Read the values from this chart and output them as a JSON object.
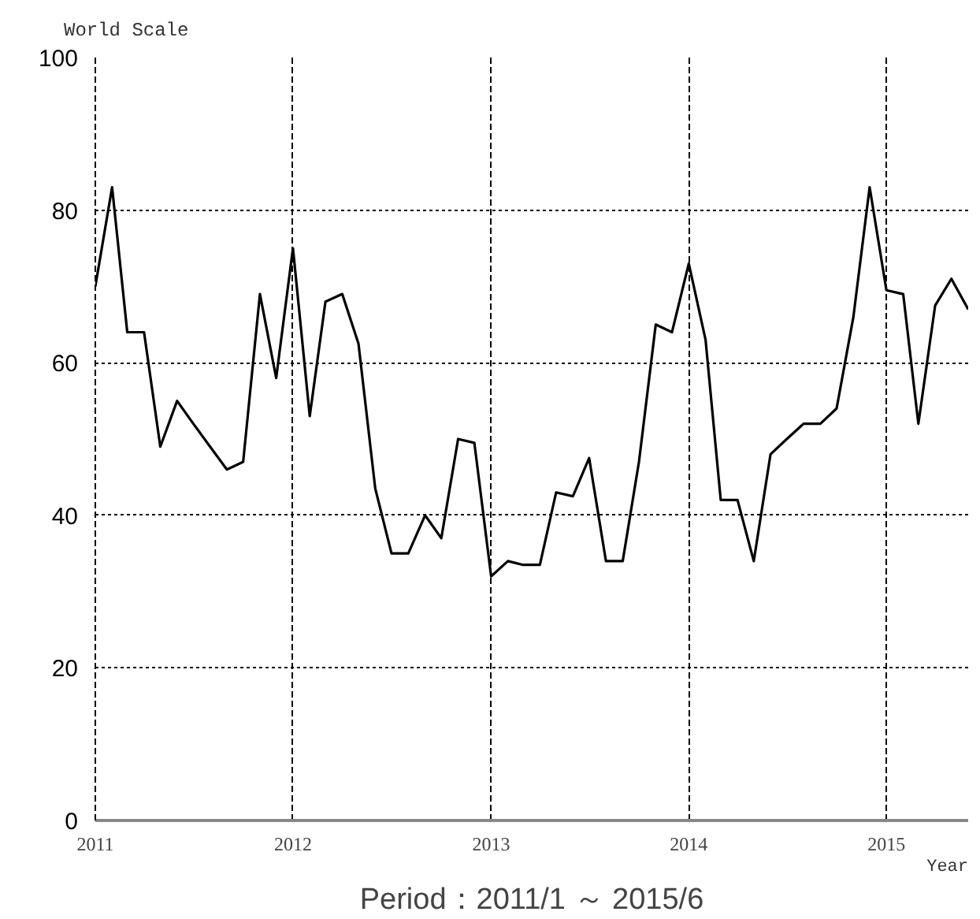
{
  "chart_data": {
    "type": "line",
    "title": "Period：2011/1 ～ 2015/6",
    "xlabel": "Year",
    "ylabel": "World Scale",
    "x": [
      "2011-01",
      "2011-02",
      "2011-03",
      "2011-04",
      "2011-05",
      "2011-06",
      "2011-07",
      "2011-08",
      "2011-09",
      "2011-10",
      "2011-11",
      "2011-12",
      "2012-01",
      "2012-02",
      "2012-03",
      "2012-04",
      "2012-05",
      "2012-06",
      "2012-07",
      "2012-08",
      "2012-09",
      "2012-10",
      "2012-11",
      "2012-12",
      "2013-01",
      "2013-02",
      "2013-03",
      "2013-04",
      "2013-05",
      "2013-06",
      "2013-07",
      "2013-08",
      "2013-09",
      "2013-10",
      "2013-11",
      "2013-12",
      "2014-01",
      "2014-02",
      "2014-03",
      "2014-04",
      "2014-05",
      "2014-06",
      "2014-07",
      "2014-08",
      "2014-09",
      "2014-10",
      "2014-11",
      "2014-12",
      "2015-01",
      "2015-02",
      "2015-03",
      "2015-04",
      "2015-05",
      "2015-06"
    ],
    "series": [
      {
        "color": "#000000",
        "values": [
          70,
          83,
          64,
          64,
          49,
          55,
          52,
          49,
          46,
          47,
          69,
          58,
          75,
          53,
          68,
          69,
          62.5,
          43.5,
          35,
          35,
          40,
          37,
          50,
          49.5,
          32,
          34,
          33.5,
          33.5,
          43,
          42.5,
          47.5,
          34,
          34,
          47,
          65,
          64,
          73,
          63,
          42,
          42,
          34,
          48,
          50,
          52,
          52,
          54,
          66,
          83,
          69.5,
          69,
          52,
          67.5,
          71,
          67
        ]
      }
    ],
    "xlim": [
      "2011-01",
      "2015-06"
    ],
    "xticks": [
      {
        "value": "2011",
        "label": "2011"
      },
      {
        "value": "2012",
        "label": "2012"
      },
      {
        "value": "2013",
        "label": "2013"
      },
      {
        "value": "2014",
        "label": "2014"
      },
      {
        "value": "2015",
        "label": "2015"
      }
    ],
    "ylim": [
      0,
      100
    ],
    "yticks": [
      0,
      20,
      40,
      60,
      80,
      100
    ],
    "grid": true,
    "marker": "none",
    "line_style": "solid"
  }
}
